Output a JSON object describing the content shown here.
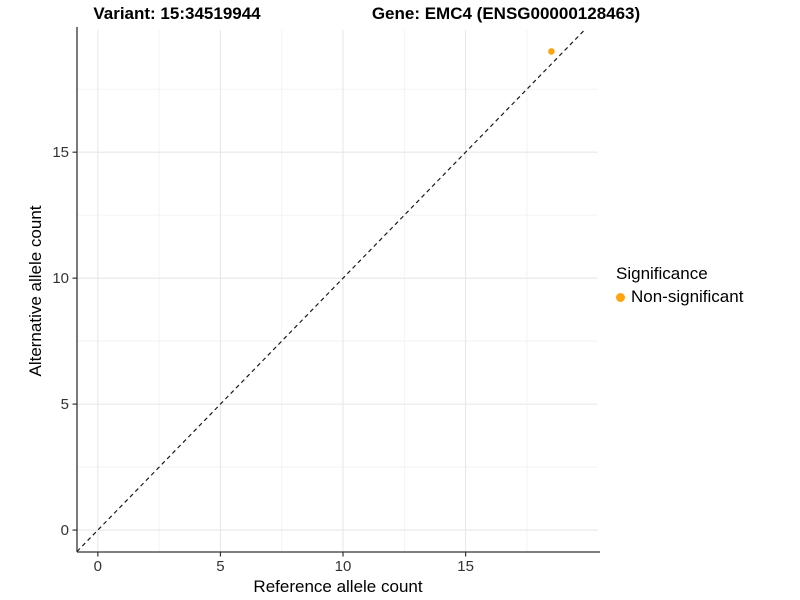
{
  "colors": {
    "point_orange": "#FFA40E",
    "grid_major": "#E7E7E7",
    "grid_minor": "#F2F2F2",
    "axis_line": "#333333",
    "identity_line": "#1A1A1A",
    "tick_text": "#333333"
  },
  "chart_data": {
    "type": "scatter",
    "title_variant": "Variant: 15:34519944",
    "title_gene": "Gene: EMC4 (ENSG00000128463)",
    "xlabel": "Reference allele count",
    "ylabel": "Alternative allele count",
    "xlim": [
      -0.85,
      20.4
    ],
    "ylim": [
      -0.87,
      19.85
    ],
    "x_ticks": [
      0,
      5,
      10,
      15
    ],
    "y_ticks": [
      0,
      5,
      10,
      15
    ],
    "x_minor_ticks": [
      2.5,
      7.5,
      12.5,
      17.5
    ],
    "y_minor_ticks": [
      2.5,
      7.5,
      12.5,
      17.5
    ],
    "grid": true,
    "identity_line": {
      "slope": 1,
      "intercept": 0,
      "style": "dashed"
    },
    "series": [
      {
        "name": "Non-significant",
        "color": "#FFA40E",
        "points": [
          [
            18.5,
            19.0
          ]
        ]
      }
    ],
    "legend": {
      "title": "Significance",
      "position": "right",
      "entries": [
        {
          "label": "Non-significant",
          "color": "#FFA40E"
        }
      ]
    }
  }
}
